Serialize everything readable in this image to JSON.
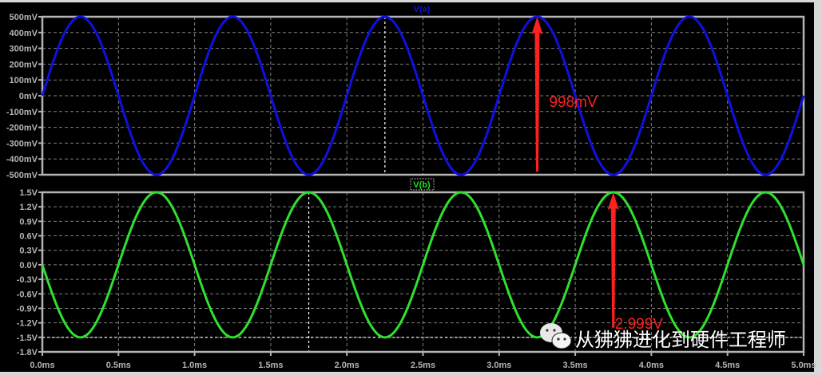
{
  "chart_data": [
    {
      "type": "line",
      "title": "V(a)",
      "title_color": "#1010e0",
      "xlim": [
        0,
        5
      ],
      "ylim": [
        -500,
        500
      ],
      "yunit": "mV",
      "yticks": [
        "500mV",
        "400mV",
        "300mV",
        "200mV",
        "100mV",
        "0mV",
        "-100mV",
        "-200mV",
        "-300mV",
        "-400mV",
        "-500mV"
      ],
      "ytick_values": [
        500,
        400,
        300,
        200,
        100,
        0,
        -100,
        -200,
        -300,
        -400,
        -500
      ],
      "grid": true,
      "series": [
        {
          "name": "V(a)",
          "color": "#1010e0",
          "waveform": "sine",
          "amplitude": 500,
          "frequency_per_ms": 1,
          "phase_deg": 0
        }
      ],
      "cursor_x": 2.25,
      "annotation": {
        "text": "998mV",
        "color": "#ff2020",
        "x": 3.25,
        "from": -480,
        "to": 500
      }
    },
    {
      "type": "line",
      "title": "V(b)",
      "title_color": "#20e020",
      "xlim": [
        0,
        5
      ],
      "ylim": [
        -1.8,
        1.5
      ],
      "yunit": "V",
      "yticks": [
        "1.5V",
        "1.2V",
        "0.9V",
        "0.6V",
        "0.3V",
        "0.0V",
        "-0.3V",
        "-0.6V",
        "-0.9V",
        "-1.2V",
        "-1.5V",
        "-1.8V"
      ],
      "ytick_values": [
        1.5,
        1.2,
        0.9,
        0.6,
        0.3,
        0,
        -0.3,
        -0.6,
        -0.9,
        -1.2,
        -1.5,
        -1.8
      ],
      "grid": true,
      "series": [
        {
          "name": "V(b)",
          "color": "#30e030",
          "waveform": "sine",
          "amplitude": 1.5,
          "frequency_per_ms": 1,
          "phase_deg": 180
        }
      ],
      "cursor_x": 1.75,
      "cursor_y": -1.5,
      "annotation": {
        "text": "2.999V",
        "color": "#ff2020",
        "x": 3.75,
        "from": -1.3,
        "to": 1.5
      }
    }
  ],
  "xaxis": {
    "ticks": [
      "0.0ms",
      "0.5ms",
      "1.0ms",
      "1.5ms",
      "2.0ms",
      "2.5ms",
      "3.0ms",
      "3.5ms",
      "4.0ms",
      "4.5ms",
      "5.0ms"
    ],
    "tick_values": [
      0,
      0.5,
      1,
      1.5,
      2,
      2.5,
      3,
      3.5,
      4,
      4.5,
      5
    ]
  },
  "watermark": {
    "text": "从狒狒进化到硬件工程师",
    "icon": "wechat-icon"
  }
}
